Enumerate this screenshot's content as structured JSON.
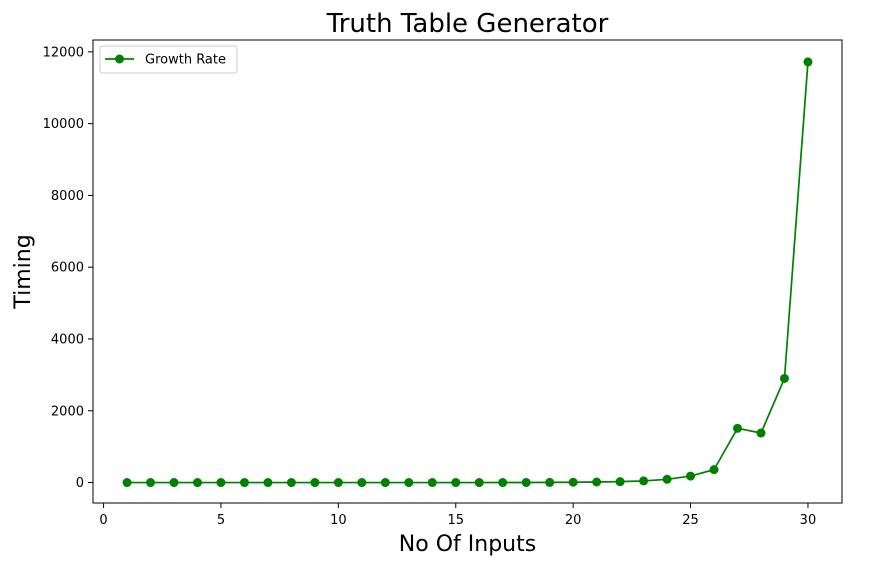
{
  "chart_data": {
    "type": "line",
    "title": "Truth Table Generator",
    "xlabel": "No Of Inputs",
    "ylabel": "Timing",
    "xlim": [
      -0.45,
      31.45
    ],
    "ylim": [
      -570,
      12330
    ],
    "xticks": [
      0,
      5,
      10,
      15,
      20,
      25,
      30
    ],
    "yticks": [
      0,
      2000,
      4000,
      6000,
      8000,
      10000,
      12000
    ],
    "grid": false,
    "legend_position": "top-left",
    "series": [
      {
        "name": "Growth Rate",
        "color": "#008000",
        "marker": "circle",
        "x": [
          1,
          2,
          3,
          4,
          5,
          6,
          7,
          8,
          9,
          10,
          11,
          12,
          13,
          14,
          15,
          16,
          17,
          18,
          19,
          20,
          21,
          22,
          23,
          24,
          25,
          26,
          27,
          28,
          29,
          30
        ],
        "values": [
          0,
          0,
          0,
          0,
          0,
          0,
          0,
          0,
          0,
          0,
          0,
          0,
          0,
          0,
          0,
          0,
          1,
          2,
          4,
          8,
          15,
          25,
          45,
          90,
          180,
          360,
          1510,
          1380,
          2900,
          11720
        ]
      }
    ]
  }
}
